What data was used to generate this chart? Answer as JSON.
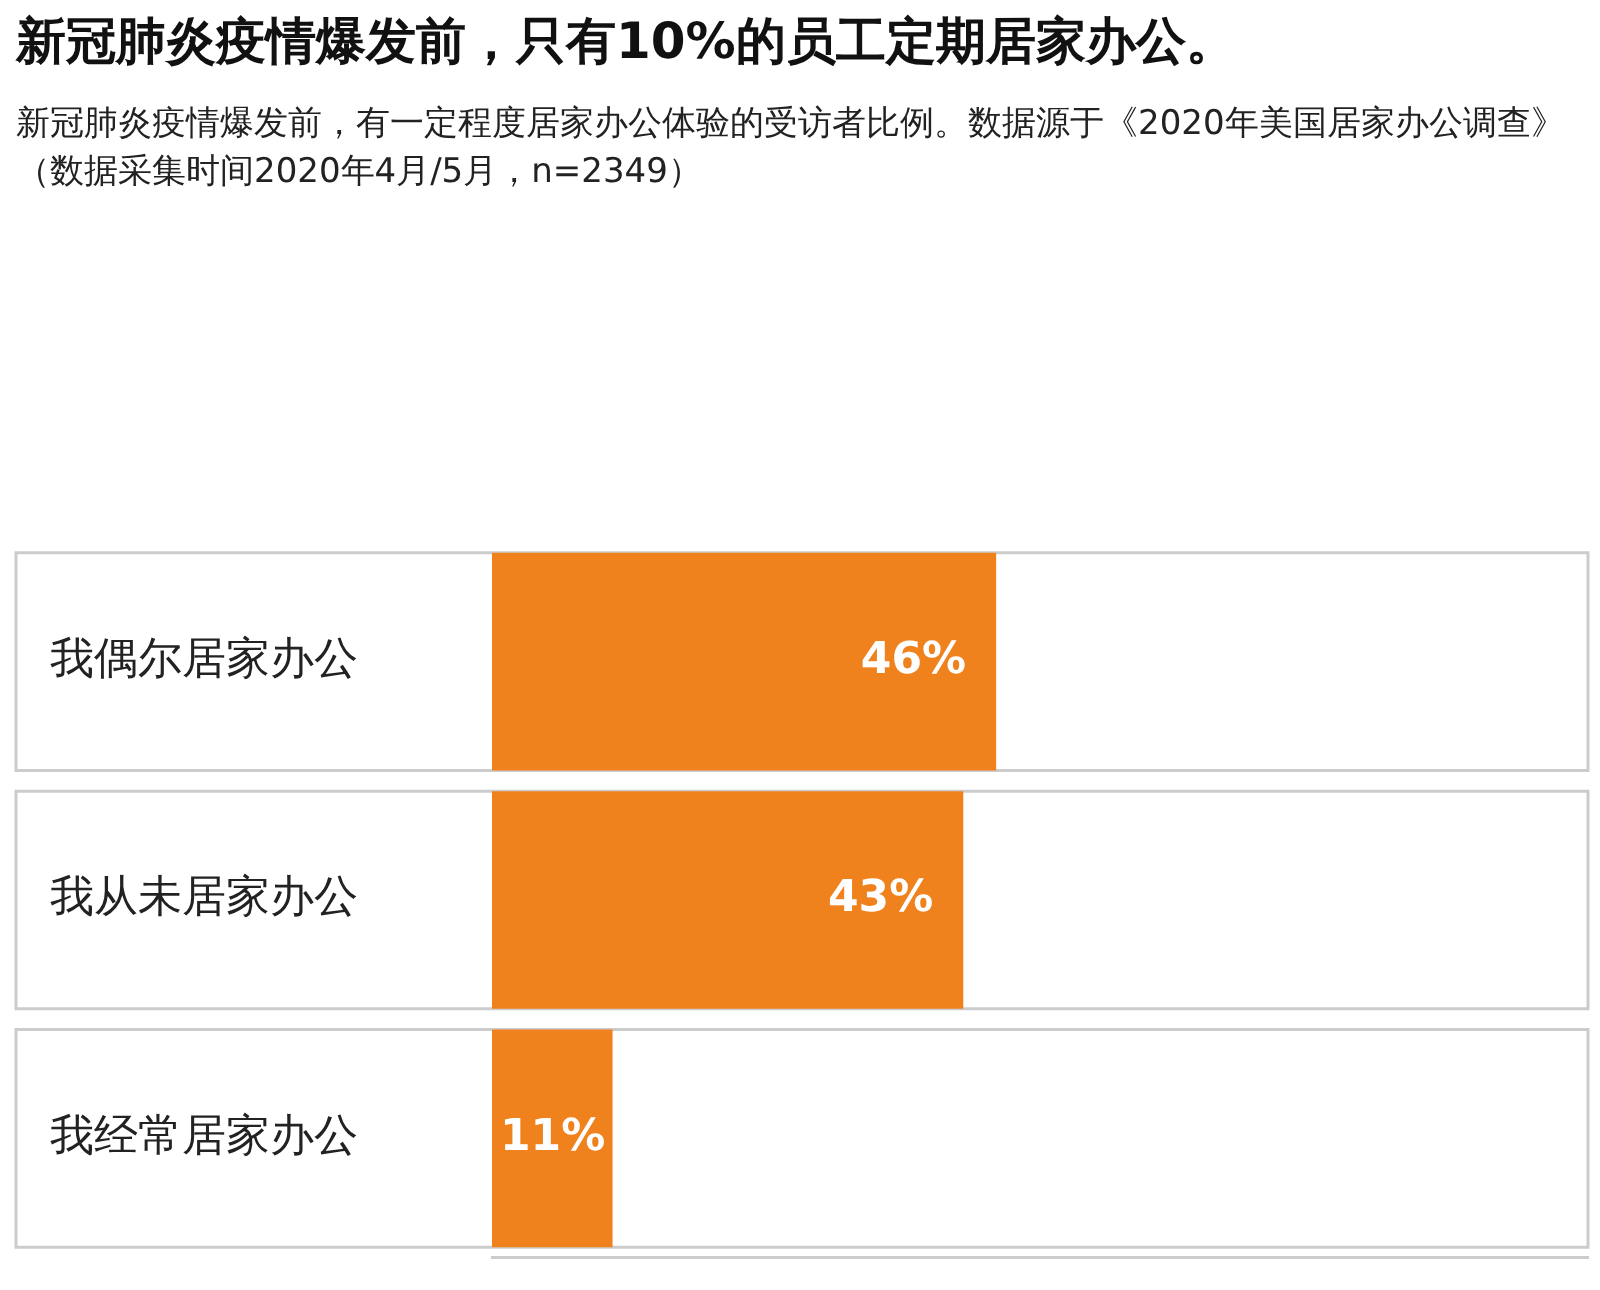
{
  "chart_data": {
    "type": "bar",
    "orientation": "horizontal",
    "title": "新冠肺炎疫情爆发前，只有10%的员工定期居家办公。",
    "subtitle": "新冠肺炎疫情爆发前，有一定程度居家办公体验的受访者比例。数据源于《2020年美国居家办公调查》（数据采集时间2020年4月/5月，n=2349）",
    "categories": [
      "我偶尔居家办公",
      "我从未居家办公",
      "我经常居家办公"
    ],
    "values": [
      46,
      43,
      11
    ],
    "color": "#f0821e",
    "value_labels": [
      "46%",
      "43%",
      "11%"
    ],
    "xlim": [
      0,
      100
    ]
  }
}
